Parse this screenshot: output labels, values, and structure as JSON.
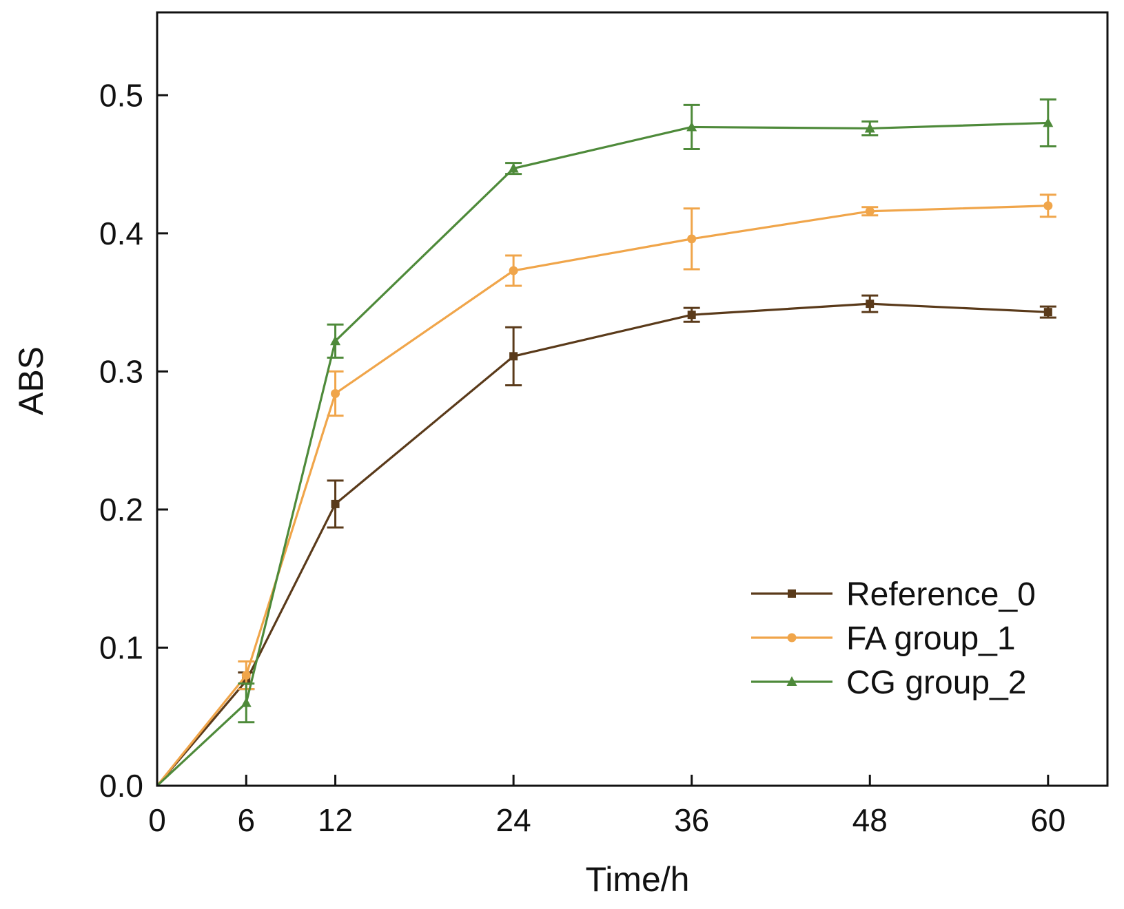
{
  "chart_data": {
    "type": "line",
    "title": "",
    "xlabel": "Time/h",
    "ylabel": "ABS",
    "x": [
      0,
      6,
      12,
      24,
      36,
      48,
      60
    ],
    "x_tick_labels": [
      "0",
      "6",
      "12",
      "24",
      "36",
      "48",
      "60"
    ],
    "y_tick_labels": [
      "0.0",
      "0.1",
      "0.2",
      "0.3",
      "0.4",
      "0.5"
    ],
    "y_ticks": [
      0.0,
      0.1,
      0.2,
      0.3,
      0.4,
      0.5
    ],
    "xlim": [
      0,
      64
    ],
    "ylim": [
      0,
      0.56
    ],
    "grid": false,
    "legend_position": "bottom-right",
    "series": [
      {
        "name": "Reference_0",
        "color": "#5a3a1a",
        "marker": "square",
        "values": [
          0.0,
          0.076,
          0.204,
          0.311,
          0.341,
          0.349,
          0.343
        ],
        "errors": [
          0.0,
          0.006,
          0.017,
          0.021,
          0.005,
          0.006,
          0.004
        ]
      },
      {
        "name": "FA group_1",
        "color": "#f0a54a",
        "marker": "circle",
        "values": [
          0.0,
          0.08,
          0.284,
          0.373,
          0.396,
          0.416,
          0.42
        ],
        "errors": [
          0.0,
          0.01,
          0.016,
          0.011,
          0.022,
          0.003,
          0.008
        ]
      },
      {
        "name": "CG group_2",
        "color": "#4e8a3a",
        "marker": "triangle",
        "values": [
          0.0,
          0.06,
          0.322,
          0.447,
          0.477,
          0.476,
          0.48
        ],
        "errors": [
          0.0,
          0.014,
          0.012,
          0.004,
          0.016,
          0.005,
          0.017
        ]
      }
    ]
  }
}
